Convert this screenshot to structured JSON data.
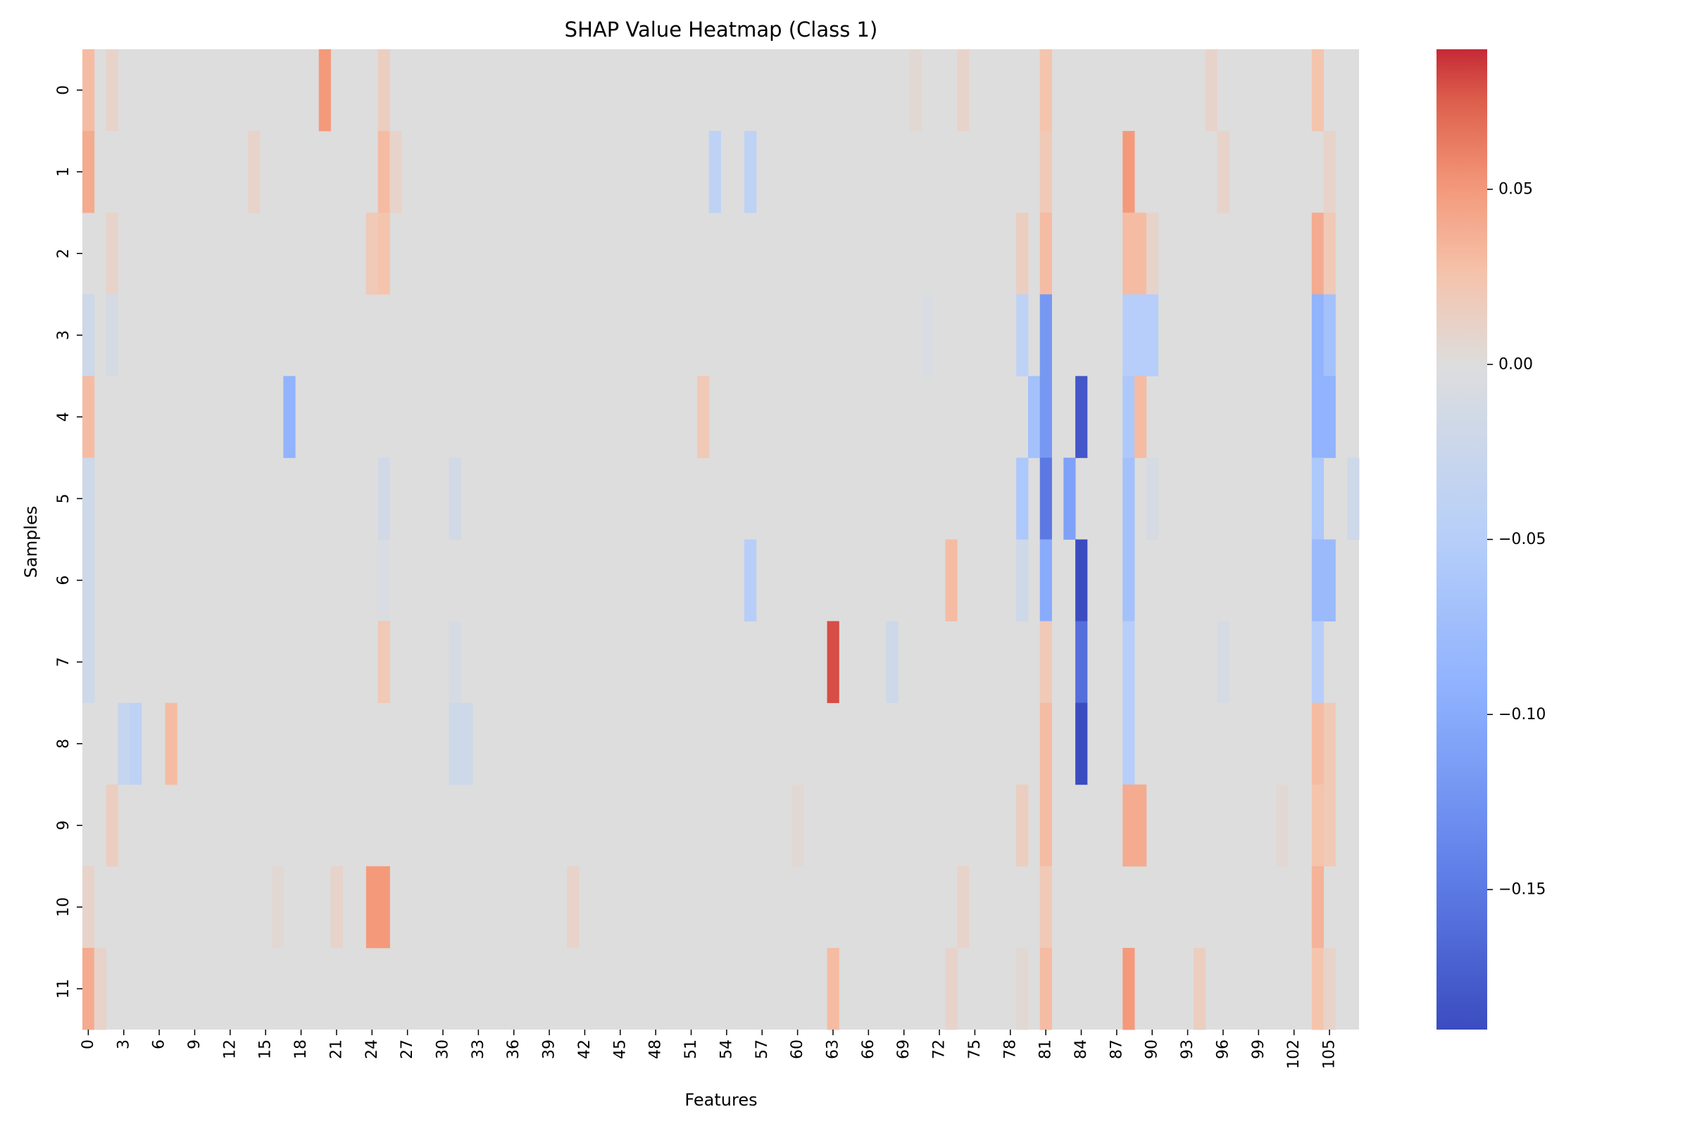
{
  "chart_data": {
    "type": "heatmap",
    "title": "SHAP Value Heatmap (Class 1)",
    "xlabel": "Features",
    "ylabel": "Samples",
    "colormap": "coolwarm",
    "n_features": 108,
    "rows": [
      "0",
      "1",
      "2",
      "3",
      "4",
      "5",
      "6",
      "7",
      "8",
      "9",
      "10",
      "11"
    ],
    "x_tick_labels": [
      "0",
      "3",
      "6",
      "9",
      "12",
      "15",
      "18",
      "21",
      "24",
      "27",
      "30",
      "33",
      "36",
      "39",
      "42",
      "45",
      "48",
      "51",
      "54",
      "57",
      "60",
      "63",
      "66",
      "69",
      "72",
      "75",
      "78",
      "81",
      "84",
      "87",
      "90",
      "93",
      "96",
      "99",
      "102",
      "105"
    ],
    "x_tick_values": [
      0,
      3,
      6,
      9,
      12,
      15,
      18,
      21,
      24,
      27,
      30,
      33,
      36,
      39,
      42,
      45,
      48,
      51,
      54,
      57,
      60,
      63,
      66,
      69,
      72,
      75,
      78,
      81,
      84,
      87,
      90,
      93,
      96,
      99,
      102,
      105
    ],
    "colorbar": {
      "vmin": -0.19,
      "vmax": 0.09,
      "ticks": [
        0.05,
        0.0,
        -0.05,
        -0.1,
        -0.15
      ],
      "tick_labels": [
        "0.05",
        "0.00",
        "−0.05",
        "−0.10",
        "−0.15"
      ]
    },
    "default_value": 0.0,
    "nonzero_cells": [
      {
        "row": 0,
        "feature": 0,
        "value": 0.03
      },
      {
        "row": 0,
        "feature": 2,
        "value": 0.01
      },
      {
        "row": 0,
        "feature": 20,
        "value": 0.05
      },
      {
        "row": 0,
        "feature": 25,
        "value": 0.015
      },
      {
        "row": 0,
        "feature": 70,
        "value": 0.005
      },
      {
        "row": 0,
        "feature": 74,
        "value": 0.01
      },
      {
        "row": 0,
        "feature": 81,
        "value": 0.025
      },
      {
        "row": 0,
        "feature": 95,
        "value": 0.01
      },
      {
        "row": 0,
        "feature": 104,
        "value": 0.025
      },
      {
        "row": 1,
        "feature": 0,
        "value": 0.04
      },
      {
        "row": 1,
        "feature": 14,
        "value": 0.01
      },
      {
        "row": 1,
        "feature": 25,
        "value": 0.03
      },
      {
        "row": 1,
        "feature": 26,
        "value": 0.01
      },
      {
        "row": 1,
        "feature": 53,
        "value": -0.04
      },
      {
        "row": 1,
        "feature": 56,
        "value": -0.04
      },
      {
        "row": 1,
        "feature": 81,
        "value": 0.02
      },
      {
        "row": 1,
        "feature": 88,
        "value": 0.05
      },
      {
        "row": 1,
        "feature": 96,
        "value": 0.01
      },
      {
        "row": 1,
        "feature": 105,
        "value": 0.01
      },
      {
        "row": 2,
        "feature": 2,
        "value": 0.01
      },
      {
        "row": 2,
        "feature": 24,
        "value": 0.02
      },
      {
        "row": 2,
        "feature": 25,
        "value": 0.025
      },
      {
        "row": 2,
        "feature": 79,
        "value": 0.015
      },
      {
        "row": 2,
        "feature": 81,
        "value": 0.03
      },
      {
        "row": 2,
        "feature": 88,
        "value": 0.03
      },
      {
        "row": 2,
        "feature": 89,
        "value": 0.03
      },
      {
        "row": 2,
        "feature": 90,
        "value": 0.01
      },
      {
        "row": 2,
        "feature": 104,
        "value": 0.04
      },
      {
        "row": 2,
        "feature": 105,
        "value": 0.02
      },
      {
        "row": 3,
        "feature": 0,
        "value": -0.02
      },
      {
        "row": 3,
        "feature": 2,
        "value": -0.01
      },
      {
        "row": 3,
        "feature": 71,
        "value": -0.005
      },
      {
        "row": 3,
        "feature": 79,
        "value": -0.04
      },
      {
        "row": 3,
        "feature": 81,
        "value": -0.12
      },
      {
        "row": 3,
        "feature": 88,
        "value": -0.05
      },
      {
        "row": 3,
        "feature": 89,
        "value": -0.05
      },
      {
        "row": 3,
        "feature": 90,
        "value": -0.05
      },
      {
        "row": 3,
        "feature": 104,
        "value": -0.09
      },
      {
        "row": 3,
        "feature": 105,
        "value": -0.07
      },
      {
        "row": 4,
        "feature": 0,
        "value": 0.03
      },
      {
        "row": 4,
        "feature": 17,
        "value": -0.09
      },
      {
        "row": 4,
        "feature": 52,
        "value": 0.02
      },
      {
        "row": 4,
        "feature": 80,
        "value": -0.07
      },
      {
        "row": 4,
        "feature": 81,
        "value": -0.12
      },
      {
        "row": 4,
        "feature": 84,
        "value": -0.18
      },
      {
        "row": 4,
        "feature": 88,
        "value": -0.06
      },
      {
        "row": 4,
        "feature": 89,
        "value": 0.03
      },
      {
        "row": 4,
        "feature": 104,
        "value": -0.09
      },
      {
        "row": 4,
        "feature": 105,
        "value": -0.09
      },
      {
        "row": 5,
        "feature": 0,
        "value": -0.02
      },
      {
        "row": 5,
        "feature": 25,
        "value": -0.015
      },
      {
        "row": 5,
        "feature": 31,
        "value": -0.015
      },
      {
        "row": 5,
        "feature": 79,
        "value": -0.06
      },
      {
        "row": 5,
        "feature": 81,
        "value": -0.15
      },
      {
        "row": 5,
        "feature": 83,
        "value": -0.11
      },
      {
        "row": 5,
        "feature": 88,
        "value": -0.07
      },
      {
        "row": 5,
        "feature": 90,
        "value": -0.01
      },
      {
        "row": 5,
        "feature": 104,
        "value": -0.06
      },
      {
        "row": 5,
        "feature": 107,
        "value": -0.02
      },
      {
        "row": 6,
        "feature": 0,
        "value": -0.02
      },
      {
        "row": 6,
        "feature": 25,
        "value": -0.005
      },
      {
        "row": 6,
        "feature": 56,
        "value": -0.05
      },
      {
        "row": 6,
        "feature": 73,
        "value": 0.03
      },
      {
        "row": 6,
        "feature": 79,
        "value": -0.02
      },
      {
        "row": 6,
        "feature": 81,
        "value": -0.1
      },
      {
        "row": 6,
        "feature": 84,
        "value": -0.19
      },
      {
        "row": 6,
        "feature": 88,
        "value": -0.07
      },
      {
        "row": 6,
        "feature": 104,
        "value": -0.08
      },
      {
        "row": 6,
        "feature": 105,
        "value": -0.08
      },
      {
        "row": 7,
        "feature": 0,
        "value": -0.02
      },
      {
        "row": 7,
        "feature": 25,
        "value": 0.02
      },
      {
        "row": 7,
        "feature": 31,
        "value": -0.01
      },
      {
        "row": 7,
        "feature": 63,
        "value": 0.08
      },
      {
        "row": 7,
        "feature": 68,
        "value": -0.02
      },
      {
        "row": 7,
        "feature": 81,
        "value": 0.02
      },
      {
        "row": 7,
        "feature": 84,
        "value": -0.16
      },
      {
        "row": 7,
        "feature": 88,
        "value": -0.05
      },
      {
        "row": 7,
        "feature": 96,
        "value": -0.01
      },
      {
        "row": 7,
        "feature": 104,
        "value": -0.05
      },
      {
        "row": 8,
        "feature": 3,
        "value": -0.03
      },
      {
        "row": 8,
        "feature": 4,
        "value": -0.04
      },
      {
        "row": 8,
        "feature": 7,
        "value": 0.03
      },
      {
        "row": 8,
        "feature": 31,
        "value": -0.02
      },
      {
        "row": 8,
        "feature": 32,
        "value": -0.02
      },
      {
        "row": 8,
        "feature": 81,
        "value": 0.03
      },
      {
        "row": 8,
        "feature": 84,
        "value": -0.19
      },
      {
        "row": 8,
        "feature": 88,
        "value": -0.05
      },
      {
        "row": 8,
        "feature": 104,
        "value": 0.03
      },
      {
        "row": 8,
        "feature": 105,
        "value": 0.02
      },
      {
        "row": 9,
        "feature": 2,
        "value": 0.015
      },
      {
        "row": 9,
        "feature": 60,
        "value": 0.005
      },
      {
        "row": 9,
        "feature": 79,
        "value": 0.015
      },
      {
        "row": 9,
        "feature": 81,
        "value": 0.03
      },
      {
        "row": 9,
        "feature": 88,
        "value": 0.04
      },
      {
        "row": 9,
        "feature": 89,
        "value": 0.04
      },
      {
        "row": 9,
        "feature": 101,
        "value": 0.005
      },
      {
        "row": 9,
        "feature": 104,
        "value": 0.025
      },
      {
        "row": 9,
        "feature": 105,
        "value": 0.02
      },
      {
        "row": 10,
        "feature": 0,
        "value": 0.01
      },
      {
        "row": 10,
        "feature": 16,
        "value": 0.005
      },
      {
        "row": 10,
        "feature": 21,
        "value": 0.01
      },
      {
        "row": 10,
        "feature": 24,
        "value": 0.05
      },
      {
        "row": 10,
        "feature": 25,
        "value": 0.05
      },
      {
        "row": 10,
        "feature": 41,
        "value": 0.01
      },
      {
        "row": 10,
        "feature": 74,
        "value": 0.01
      },
      {
        "row": 10,
        "feature": 81,
        "value": 0.02
      },
      {
        "row": 10,
        "feature": 104,
        "value": 0.035
      },
      {
        "row": 11,
        "feature": 0,
        "value": 0.04
      },
      {
        "row": 11,
        "feature": 1,
        "value": 0.01
      },
      {
        "row": 11,
        "feature": 63,
        "value": 0.03
      },
      {
        "row": 11,
        "feature": 73,
        "value": 0.01
      },
      {
        "row": 11,
        "feature": 79,
        "value": 0.005
      },
      {
        "row": 11,
        "feature": 81,
        "value": 0.03
      },
      {
        "row": 11,
        "feature": 88,
        "value": 0.05
      },
      {
        "row": 11,
        "feature": 94,
        "value": 0.015
      },
      {
        "row": 11,
        "feature": 104,
        "value": 0.025
      },
      {
        "row": 11,
        "feature": 105,
        "value": 0.01
      }
    ]
  }
}
